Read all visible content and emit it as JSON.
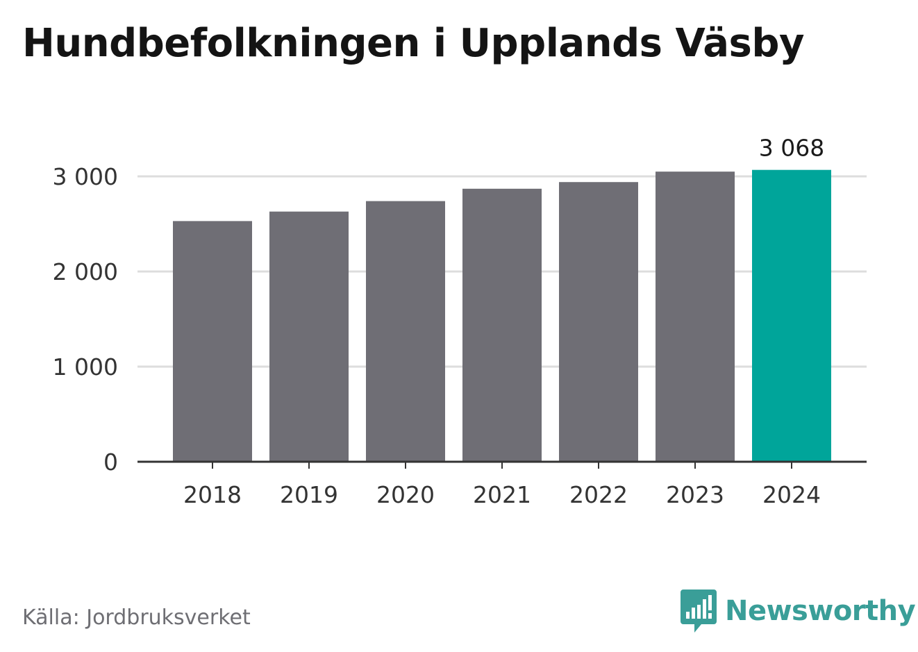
{
  "title": "Hundbefolkningen i Upplands Väsby",
  "source": "Källa: Jordbruksverket",
  "brand": {
    "name": "Newsworthy",
    "icon": "newsworthy-logo-icon",
    "color": "#3a9e98"
  },
  "colors": {
    "bar": "#6f6e75",
    "highlight": "#00a59a",
    "grid": "#dddddd",
    "axis": "#333333"
  },
  "chart_data": {
    "type": "bar",
    "title": "Hundbefolkningen i Upplands Väsby",
    "categories": [
      "2018",
      "2019",
      "2020",
      "2021",
      "2022",
      "2023",
      "2024"
    ],
    "values": [
      2530,
      2630,
      2740,
      2870,
      2940,
      3050,
      3068
    ],
    "highlight_index": 6,
    "data_labels": [
      {
        "index": 6,
        "text": "3 068"
      }
    ],
    "ylim": [
      0,
      3000
    ],
    "yticks": [
      0,
      1000,
      2000,
      3000
    ],
    "ytick_labels": [
      "0",
      "1 000",
      "2 000",
      "3 000"
    ],
    "grid": true,
    "legend": "none"
  }
}
